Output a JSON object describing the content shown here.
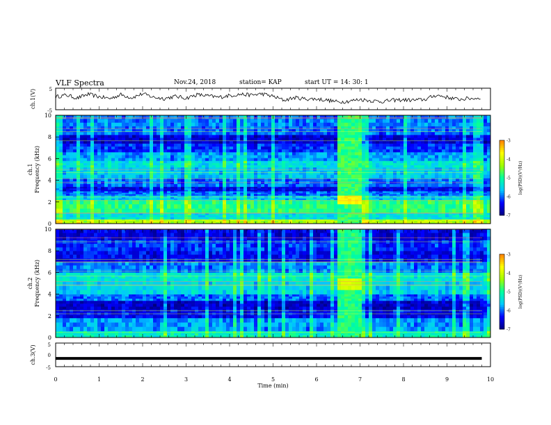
{
  "header": {
    "title": "VLF Spectra",
    "date": "Nov.24, 2018",
    "station": "station= KAP",
    "start_time": "start  UT =   14: 30: 1"
  },
  "colors": {
    "trace": "#000000",
    "scale": [
      "#00007f",
      "#0000ff",
      "#00c8ff",
      "#00ffa0",
      "#a0ff00",
      "#ffff00",
      "#ff8000",
      "#ff0000",
      "#ff6e6e",
      "#ffffff"
    ]
  },
  "chart_data": [
    {
      "type": "line",
      "name": "ch1-waveform",
      "ylabel": "ch.1(V)",
      "ylim": [
        -5,
        5
      ],
      "yticks": [
        "5",
        "-5"
      ],
      "xlim": [
        0,
        10
      ],
      "x": [
        0,
        0.25,
        0.5,
        0.75,
        1.0,
        1.25,
        1.5,
        1.75,
        2.0,
        2.25,
        2.5,
        2.75,
        3.0,
        3.25,
        3.5,
        3.75,
        4.0,
        4.25,
        4.5,
        4.75,
        5.0,
        5.25,
        5.5,
        5.75,
        6.0,
        6.25,
        6.5,
        6.75,
        7.0,
        7.25,
        7.5,
        7.75,
        8.0,
        8.25,
        8.5,
        8.75,
        9.0,
        9.25,
        9.5,
        9.8
      ],
      "y": [
        1.0,
        1.8,
        0.4,
        2.2,
        1.0,
        0.2,
        2.0,
        0.6,
        2.4,
        0.8,
        0.2,
        1.2,
        0.4,
        2.0,
        1.4,
        0.8,
        1.6,
        2.2,
        1.8,
        2.4,
        1.2,
        -0.6,
        0.6,
        0.0,
        0.0,
        -0.6,
        -1.4,
        -1.0,
        -0.2,
        -0.8,
        -1.2,
        -0.6,
        -0.4,
        -0.6,
        -0.2,
        1.8,
        0.8,
        -0.2,
        0.2,
        0.4
      ]
    },
    {
      "type": "heatmap",
      "name": "ch1-spectrogram",
      "ylabel": "ch.1\nFrequency (kHz)",
      "ylim": [
        0,
        10
      ],
      "yticks": [
        "0",
        "2",
        "4",
        "6",
        "8",
        "10"
      ],
      "xlim": [
        0,
        10
      ],
      "colorbar": {
        "label": "log(PSD)(V²/Hz)",
        "range": [
          -7,
          -3
        ],
        "ticks": [
          "-3",
          "-4",
          "-5",
          "-6",
          "-7"
        ]
      },
      "bands_khz": [
        {
          "from": 0.0,
          "to": 0.4,
          "level": -4.2
        },
        {
          "from": 0.4,
          "to": 1.0,
          "level": -5.4
        },
        {
          "from": 1.0,
          "to": 2.2,
          "level": -4.9
        },
        {
          "from": 2.2,
          "to": 2.6,
          "level": -5.6
        },
        {
          "from": 2.6,
          "to": 3.0,
          "level": -6.0
        },
        {
          "from": 3.0,
          "to": 3.4,
          "level": -6.5
        },
        {
          "from": 3.4,
          "to": 4.2,
          "level": -6.0
        },
        {
          "from": 4.2,
          "to": 5.2,
          "level": -5.6
        },
        {
          "from": 5.2,
          "to": 5.8,
          "level": -5.4
        },
        {
          "from": 5.8,
          "to": 6.6,
          "level": -5.8
        },
        {
          "from": 6.6,
          "to": 7.4,
          "level": -6.2
        },
        {
          "from": 7.4,
          "to": 8.2,
          "level": -6.6
        },
        {
          "from": 8.2,
          "to": 9.0,
          "level": -6.0
        },
        {
          "from": 9.0,
          "to": 10.0,
          "level": -5.9
        }
      ],
      "burst": {
        "t_from": 6.45,
        "t_to": 7.0,
        "level": -4.8,
        "peak_khz": [
          2.0,
          2.6
        ],
        "peak_level": -3.6
      }
    },
    {
      "type": "heatmap",
      "name": "ch2-spectrogram",
      "ylabel": "ch.2\nFrequency (kHz)",
      "ylim": [
        0,
        10
      ],
      "yticks": [
        "0",
        "2",
        "4",
        "6",
        "8",
        "10"
      ],
      "xlim": [
        0,
        10
      ],
      "colorbar": {
        "label": "log(PSD)(V²/Hz)",
        "range": [
          -7,
          -3
        ],
        "ticks": [
          "-3",
          "-4",
          "-5",
          "-6",
          "-7"
        ]
      },
      "bands_khz": [
        {
          "from": 0.0,
          "to": 0.6,
          "level": -5.2
        },
        {
          "from": 0.6,
          "to": 1.8,
          "level": -5.8
        },
        {
          "from": 1.8,
          "to": 2.6,
          "level": -6.4
        },
        {
          "from": 2.6,
          "to": 3.4,
          "level": -6.6
        },
        {
          "from": 3.4,
          "to": 4.0,
          "level": -6.0
        },
        {
          "from": 4.0,
          "to": 5.2,
          "level": -5.5
        },
        {
          "from": 5.2,
          "to": 6.0,
          "level": -5.3
        },
        {
          "from": 6.0,
          "to": 7.0,
          "level": -5.9
        },
        {
          "from": 7.0,
          "to": 8.0,
          "level": -6.4
        },
        {
          "from": 8.0,
          "to": 9.0,
          "level": -6.2
        },
        {
          "from": 9.0,
          "to": 10.0,
          "level": -6.5
        }
      ],
      "burst": {
        "t_from": 6.45,
        "t_to": 7.0,
        "level": -4.9,
        "peak_khz": [
          4.6,
          5.4
        ],
        "peak_level": -4.0
      }
    },
    {
      "type": "line",
      "name": "ch3-waveform",
      "ylabel": "ch.3(V)",
      "ylim": [
        -5,
        5
      ],
      "yticks": [
        "5",
        "0",
        "-5"
      ],
      "xlim": [
        0,
        10
      ],
      "x": [
        0,
        9.8
      ],
      "y": [
        -1.5,
        -1.5
      ]
    }
  ],
  "xaxis": {
    "label": "Time (min)",
    "ticks": [
      "0",
      "1",
      "2",
      "3",
      "4",
      "5",
      "6",
      "7",
      "8",
      "9",
      "10"
    ]
  }
}
